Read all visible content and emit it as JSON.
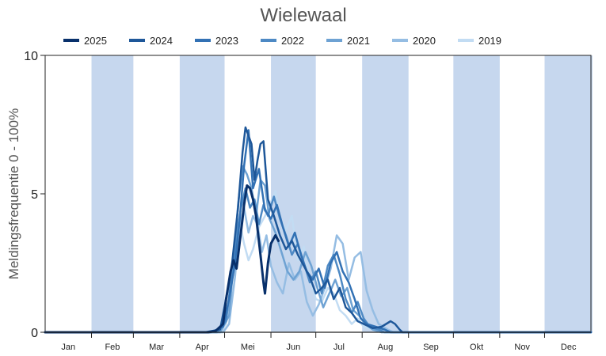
{
  "chart_data": {
    "type": "line",
    "title": "Wielewaal",
    "ylabel": "Meldingsfrequentie 0 - 100%",
    "xlabel": "",
    "ylim": [
      0,
      10
    ],
    "xlim": [
      1,
      366
    ],
    "y_ticks": [
      0,
      5,
      10
    ],
    "months": [
      "Jan",
      "Feb",
      "Mar",
      "Apr",
      "Mei",
      "Jun",
      "Jul",
      "Aug",
      "Sep",
      "Okt",
      "Nov",
      "Dec"
    ],
    "shaded_months": [
      "Feb",
      "Apr",
      "Jun",
      "Aug",
      "Okt",
      "Dec"
    ],
    "grid": false,
    "legend_position": "top",
    "shade_color": "#c6d7ee",
    "series": [
      {
        "name": "2025",
        "color": "#08306b",
        "width": 3,
        "points": [
          [
            1,
            0
          ],
          [
            100,
            0
          ],
          [
            110,
            0
          ],
          [
            115,
            0.05
          ],
          [
            120,
            0.3
          ],
          [
            122,
            1.2
          ],
          [
            125,
            2.2
          ],
          [
            127,
            2.6
          ],
          [
            129,
            2.3
          ],
          [
            131,
            3.2
          ],
          [
            133,
            4.1
          ],
          [
            134,
            4.6
          ],
          [
            136,
            5.3
          ],
          [
            138,
            5.2
          ],
          [
            140,
            4.8
          ],
          [
            142,
            4.2
          ],
          [
            145,
            2.8
          ],
          [
            147,
            1.8
          ],
          [
            148,
            1.4
          ],
          [
            150,
            2.5
          ],
          [
            152,
            3.2
          ],
          [
            155,
            3.5
          ],
          [
            156,
            3.4
          ],
          [
            157,
            3.3
          ]
        ]
      },
      {
        "name": "2024",
        "color": "#1e5799",
        "width": 2.5,
        "points": [
          [
            1,
            0
          ],
          [
            108,
            0
          ],
          [
            118,
            0.1
          ],
          [
            123,
            1.5
          ],
          [
            126,
            2.5
          ],
          [
            130,
            4.5
          ],
          [
            133,
            6.5
          ],
          [
            135,
            7.4
          ],
          [
            137,
            7.1
          ],
          [
            139,
            6.8
          ],
          [
            141,
            5.5
          ],
          [
            143,
            6.2
          ],
          [
            145,
            6.8
          ],
          [
            147,
            6.9
          ],
          [
            150,
            4.8
          ],
          [
            154,
            4.2
          ],
          [
            158,
            3.5
          ],
          [
            162,
            3
          ],
          [
            166,
            3.3
          ],
          [
            170,
            2.8
          ],
          [
            174,
            2.4
          ],
          [
            178,
            2
          ],
          [
            182,
            1.4
          ],
          [
            186,
            1.6
          ],
          [
            190,
            1.9
          ],
          [
            194,
            1.2
          ],
          [
            198,
            1.6
          ],
          [
            202,
            0.9
          ],
          [
            206,
            0.7
          ],
          [
            210,
            0.4
          ],
          [
            214,
            0.3
          ],
          [
            220,
            0.15
          ],
          [
            226,
            0.2
          ],
          [
            232,
            0.4
          ],
          [
            235,
            0.3
          ],
          [
            238,
            0.1
          ],
          [
            240,
            0
          ],
          [
            366,
            0
          ]
        ]
      },
      {
        "name": "2023",
        "color": "#3271b4",
        "width": 2.5,
        "points": [
          [
            1,
            0
          ],
          [
            112,
            0
          ],
          [
            120,
            0.2
          ],
          [
            124,
            1.2
          ],
          [
            128,
            2.5
          ],
          [
            131,
            4
          ],
          [
            134,
            6
          ],
          [
            137,
            7.3
          ],
          [
            140,
            5.2
          ],
          [
            144,
            5.9
          ],
          [
            148,
            4.4
          ],
          [
            152,
            4.1
          ],
          [
            156,
            4.6
          ],
          [
            160,
            3.8
          ],
          [
            164,
            3.1
          ],
          [
            168,
            3.6
          ],
          [
            172,
            2.8
          ],
          [
            176,
            2.2
          ],
          [
            180,
            1.9
          ],
          [
            184,
            2.3
          ],
          [
            188,
            1.6
          ],
          [
            192,
            2.5
          ],
          [
            196,
            2.9
          ],
          [
            200,
            2.2
          ],
          [
            204,
            1.8
          ],
          [
            208,
            1.2
          ],
          [
            212,
            0.5
          ],
          [
            216,
            0.3
          ],
          [
            222,
            0.2
          ],
          [
            228,
            0.1
          ],
          [
            232,
            0
          ],
          [
            366,
            0
          ]
        ]
      },
      {
        "name": "2022",
        "color": "#4d89c4",
        "width": 2.5,
        "points": [
          [
            1,
            0
          ],
          [
            116,
            0
          ],
          [
            122,
            0.4
          ],
          [
            126,
            2.2
          ],
          [
            129,
            3.5
          ],
          [
            132,
            4.5
          ],
          [
            135,
            5.2
          ],
          [
            138,
            4.5
          ],
          [
            141,
            4.8
          ],
          [
            144,
            3.9
          ],
          [
            147,
            4.6
          ],
          [
            150,
            4.2
          ],
          [
            154,
            4.9
          ],
          [
            158,
            4.1
          ],
          [
            162,
            3.5
          ],
          [
            166,
            2.8
          ],
          [
            170,
            3.2
          ],
          [
            174,
            2.5
          ],
          [
            178,
            1.8
          ],
          [
            182,
            2.2
          ],
          [
            186,
            1.4
          ],
          [
            190,
            2.4
          ],
          [
            194,
            2.8
          ],
          [
            198,
            2.1
          ],
          [
            202,
            1.2
          ],
          [
            206,
            0.7
          ],
          [
            210,
            1.1
          ],
          [
            214,
            0.5
          ],
          [
            218,
            0.2
          ],
          [
            224,
            0.1
          ],
          [
            228,
            0
          ],
          [
            366,
            0
          ]
        ]
      },
      {
        "name": "2021",
        "color": "#6ea2d3",
        "width": 2.5,
        "points": [
          [
            1,
            0
          ],
          [
            118,
            0
          ],
          [
            124,
            0.6
          ],
          [
            127,
            2.5
          ],
          [
            130,
            4.6
          ],
          [
            133,
            6
          ],
          [
            136,
            5.7
          ],
          [
            139,
            5.2
          ],
          [
            142,
            4.2
          ],
          [
            145,
            5.5
          ],
          [
            148,
            5.3
          ],
          [
            151,
            4.1
          ],
          [
            155,
            3.6
          ],
          [
            159,
            2.9
          ],
          [
            163,
            2.2
          ],
          [
            167,
            1.9
          ],
          [
            171,
            2.2
          ],
          [
            175,
            2.9
          ],
          [
            179,
            2.4
          ],
          [
            183,
            1.6
          ],
          [
            187,
            0.9
          ],
          [
            191,
            1.4
          ],
          [
            195,
            1.9
          ],
          [
            199,
            1.3
          ],
          [
            203,
            1.6
          ],
          [
            207,
            0.8
          ],
          [
            211,
            0.6
          ],
          [
            215,
            0.3
          ],
          [
            220,
            0.1
          ],
          [
            226,
            0
          ],
          [
            366,
            0
          ]
        ]
      },
      {
        "name": "2020",
        "color": "#95bde3",
        "width": 2.5,
        "points": [
          [
            1,
            0
          ],
          [
            120,
            0
          ],
          [
            124,
            0.3
          ],
          [
            128,
            2
          ],
          [
            131,
            3.8
          ],
          [
            134,
            4.5
          ],
          [
            137,
            3.6
          ],
          [
            140,
            4.2
          ],
          [
            143,
            3.9
          ],
          [
            146,
            2.9
          ],
          [
            149,
            3.5
          ],
          [
            152,
            2.4
          ],
          [
            156,
            1.8
          ],
          [
            160,
            1.4
          ],
          [
            164,
            2.5
          ],
          [
            168,
            1.9
          ],
          [
            172,
            2.2
          ],
          [
            176,
            1.1
          ],
          [
            180,
            0.6
          ],
          [
            184,
            1
          ],
          [
            188,
            1.6
          ],
          [
            192,
            2.3
          ],
          [
            196,
            3.5
          ],
          [
            200,
            3.2
          ],
          [
            204,
            1.9
          ],
          [
            208,
            2.7
          ],
          [
            212,
            2.9
          ],
          [
            216,
            1.5
          ],
          [
            220,
            0.8
          ],
          [
            224,
            0.3
          ],
          [
            230,
            0.1
          ],
          [
            234,
            0
          ],
          [
            366,
            0
          ]
        ]
      },
      {
        "name": "2019",
        "color": "#c2dcf3",
        "width": 2.5,
        "points": [
          [
            1,
            0
          ],
          [
            118,
            0
          ],
          [
            122,
            0.3
          ],
          [
            125,
            1.8
          ],
          [
            128,
            3.3
          ],
          [
            131,
            4
          ],
          [
            134,
            3.2
          ],
          [
            137,
            2.6
          ],
          [
            140,
            3
          ],
          [
            144,
            3.8
          ],
          [
            148,
            4.2
          ],
          [
            152,
            4.7
          ],
          [
            155,
            5.1
          ],
          [
            158,
            4.1
          ],
          [
            162,
            3.7
          ],
          [
            166,
            4.2
          ],
          [
            170,
            2.6
          ],
          [
            174,
            3.1
          ],
          [
            178,
            1.9
          ],
          [
            182,
            1.2
          ],
          [
            186,
            1.1
          ],
          [
            190,
            1.6
          ],
          [
            194,
            1.4
          ],
          [
            198,
            0.8
          ],
          [
            202,
            0.6
          ],
          [
            206,
            0.3
          ],
          [
            210,
            0.5
          ],
          [
            214,
            0.2
          ],
          [
            220,
            0.1
          ],
          [
            226,
            0
          ],
          [
            366,
            0
          ]
        ]
      }
    ]
  }
}
